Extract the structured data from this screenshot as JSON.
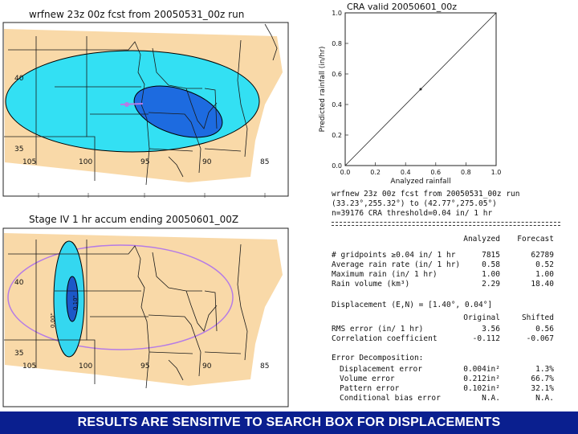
{
  "top_map": {
    "title": "wrfnew 23z 00z fcst from 20050531_00z run",
    "lat_labels": [
      "40",
      "35"
    ],
    "lon_labels": [
      "105",
      "100",
      "95",
      "90",
      "85"
    ]
  },
  "bottom_map": {
    "title": "Stage IV 1 hr accum ending 20050601_00Z",
    "lat_labels": [
      "40",
      "35"
    ],
    "lon_labels": [
      "105",
      "100",
      "95",
      "90",
      "85"
    ],
    "contour_labels": [
      "0.00\"",
      "0.10\""
    ]
  },
  "chart_data": {
    "type": "scatter",
    "title": "CRA valid 20050601_00z",
    "xlabel": "Analyzed rainfall",
    "ylabel": "Predicted rainfall (in/hr)",
    "xlim": [
      0.0,
      1.0
    ],
    "ylim": [
      0.0,
      1.0
    ],
    "x_ticks": [
      "0.0",
      "0.2",
      "0.4",
      "0.6",
      "0.8",
      "1.0"
    ],
    "y_ticks": [
      "0.0",
      "0.2",
      "0.4",
      "0.6",
      "0.8",
      "1.0"
    ],
    "reference_line": "1:1",
    "points": [
      {
        "x": 0.5,
        "y": 0.5
      }
    ]
  },
  "stats": {
    "header": [
      "wrfnew 23z 00z fcst from 20050531_00z run",
      "(33.23°,255.32°) to (42.77°,275.05°)",
      "n=39176   CRA threshold=0.04 in/ 1 hr"
    ],
    "col1": "Analyzed",
    "col2": "Forecast",
    "rows": [
      {
        "label": "# gridpoints ≥0.04 in/ 1 hr",
        "a": "7815",
        "b": "62789"
      },
      {
        "label": "Average rain rate (in/ 1 hr)",
        "a": "0.58",
        "b": "0.52"
      },
      {
        "label": "Maximum rain (in/ 1 hr)",
        "a": "1.00",
        "b": "1.00"
      },
      {
        "label": "Rain volume (km³)",
        "a": "2.29",
        "b": "18.40"
      }
    ],
    "displacement": "Displacement (E,N) = [1.40°, 0.04°]",
    "col3": "Original",
    "col4": "Shifted",
    "rows2": [
      {
        "label": "RMS error (in/ 1 hr)",
        "a": "3.56",
        "b": "0.56"
      },
      {
        "label": "Correlation coefficient",
        "a": "-0.112",
        "b": "-0.067"
      }
    ],
    "decomp_title": "Error Decomposition:",
    "decomp": [
      {
        "label": "Displacement error",
        "a": "0.004in²",
        "b": "1.3%"
      },
      {
        "label": "Volume error",
        "a": "0.212in²",
        "b": "66.7%"
      },
      {
        "label": "Pattern error",
        "a": "0.102in²",
        "b": "32.1%"
      },
      {
        "label": "Conditional bias error",
        "a": "N.A.",
        "b": "N.A."
      }
    ]
  },
  "banner": "RESULTS ARE SENSITIVE TO SEARCH BOX FOR DISPLACEMENTS",
  "colors": {
    "domain": "#f9d9a8",
    "forecast_light": "#33e0f3",
    "forecast_dark": "#1d6be0",
    "obs_light": "#34d7f0",
    "obs_dark": "#1c58c8",
    "search_box": "#b57be6",
    "banner": "#0a1f8f"
  }
}
